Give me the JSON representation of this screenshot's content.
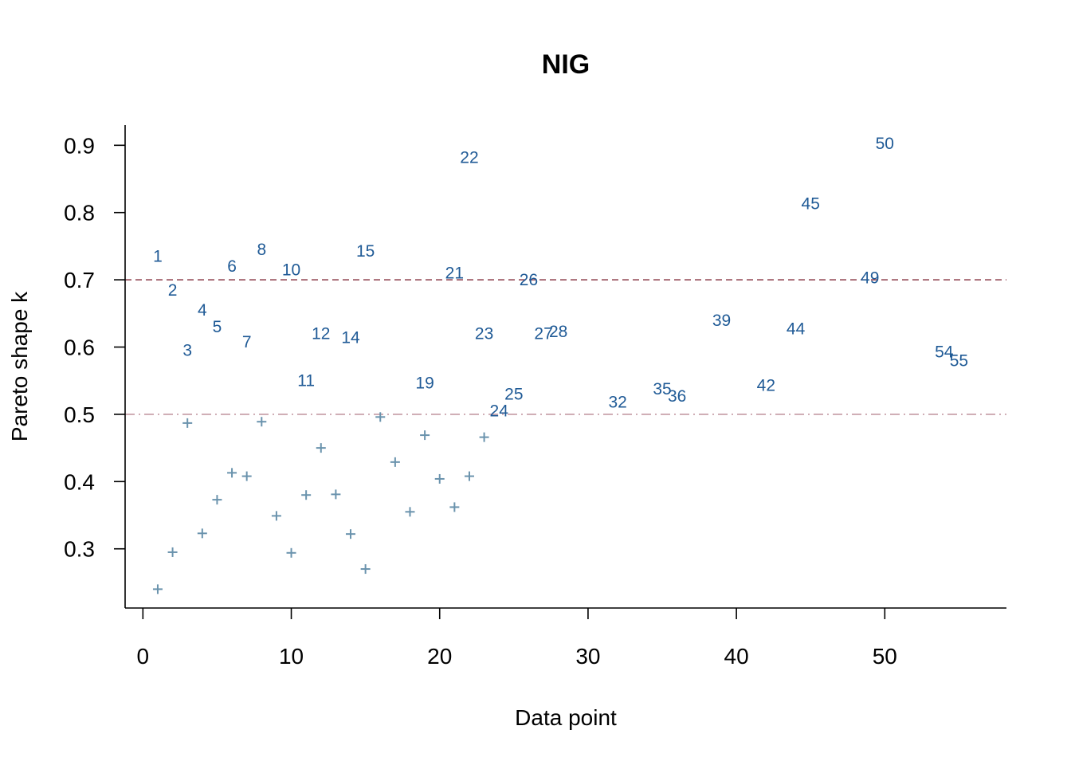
{
  "chart_data": {
    "type": "scatter",
    "title": "NIG",
    "xlabel": "Data point",
    "ylabel": "Pareto shape k",
    "xlim": [
      -1.2,
      58.2
    ],
    "ylim": [
      0.212,
      0.93
    ],
    "x_ticks": [
      0,
      10,
      20,
      30,
      40,
      50
    ],
    "y_ticks": [
      0.3,
      0.4,
      0.5,
      0.6,
      0.7,
      0.8,
      0.9
    ],
    "reference_lines": [
      {
        "y": 0.7,
        "style": "dashed",
        "color": "#8b3a48"
      },
      {
        "y": 0.5,
        "style": "dashdot",
        "color": "#c49aa4"
      }
    ],
    "colors": {
      "label": "#1f5a96",
      "cross": "#6a93ad",
      "axis": "#000000"
    },
    "labeled_points": [
      {
        "x": 1,
        "k": 0.735,
        "label": "1"
      },
      {
        "x": 2,
        "k": 0.685,
        "label": "2"
      },
      {
        "x": 3,
        "k": 0.595,
        "label": "3"
      },
      {
        "x": 4,
        "k": 0.655,
        "label": "4"
      },
      {
        "x": 5,
        "k": 0.63,
        "label": "5"
      },
      {
        "x": 6,
        "k": 0.72,
        "label": "6"
      },
      {
        "x": 7,
        "k": 0.608,
        "label": "7"
      },
      {
        "x": 8,
        "k": 0.745,
        "label": "8"
      },
      {
        "x": 10,
        "k": 0.715,
        "label": "10"
      },
      {
        "x": 11,
        "k": 0.55,
        "label": "11"
      },
      {
        "x": 12,
        "k": 0.62,
        "label": "12"
      },
      {
        "x": 14,
        "k": 0.614,
        "label": "14"
      },
      {
        "x": 15,
        "k": 0.743,
        "label": "15"
      },
      {
        "x": 19,
        "k": 0.547,
        "label": "19"
      },
      {
        "x": 21,
        "k": 0.71,
        "label": "21"
      },
      {
        "x": 22,
        "k": 0.882,
        "label": "22"
      },
      {
        "x": 23,
        "k": 0.62,
        "label": "23"
      },
      {
        "x": 24,
        "k": 0.505,
        "label": "24"
      },
      {
        "x": 25,
        "k": 0.53,
        "label": "25"
      },
      {
        "x": 26,
        "k": 0.7,
        "label": "26"
      },
      {
        "x": 27,
        "k": 0.62,
        "label": "27"
      },
      {
        "x": 28,
        "k": 0.623,
        "label": "28"
      },
      {
        "x": 32,
        "k": 0.518,
        "label": "32"
      },
      {
        "x": 35,
        "k": 0.538,
        "label": "35"
      },
      {
        "x": 36,
        "k": 0.527,
        "label": "36"
      },
      {
        "x": 39,
        "k": 0.64,
        "label": "39"
      },
      {
        "x": 42,
        "k": 0.543,
        "label": "42"
      },
      {
        "x": 44,
        "k": 0.627,
        "label": "44"
      },
      {
        "x": 45,
        "k": 0.813,
        "label": "45"
      },
      {
        "x": 49,
        "k": 0.703,
        "label": "49"
      },
      {
        "x": 50,
        "k": 0.903,
        "label": "50"
      },
      {
        "x": 54,
        "k": 0.593,
        "label": "54"
      },
      {
        "x": 55,
        "k": 0.58,
        "label": "55"
      }
    ],
    "cross_points": [
      {
        "x": 1,
        "k": 0.24
      },
      {
        "x": 2,
        "k": 0.295
      },
      {
        "x": 3,
        "k": 0.487
      },
      {
        "x": 4,
        "k": 0.323
      },
      {
        "x": 5,
        "k": 0.373
      },
      {
        "x": 6,
        "k": 0.413
      },
      {
        "x": 7,
        "k": 0.408
      },
      {
        "x": 8,
        "k": 0.489
      },
      {
        "x": 9,
        "k": 0.349
      },
      {
        "x": 10,
        "k": 0.294
      },
      {
        "x": 11,
        "k": 0.38
      },
      {
        "x": 12,
        "k": 0.45
      },
      {
        "x": 13,
        "k": 0.381
      },
      {
        "x": 14,
        "k": 0.322
      },
      {
        "x": 15,
        "k": 0.27
      },
      {
        "x": 16,
        "k": 0.496
      },
      {
        "x": 17,
        "k": 0.429
      },
      {
        "x": 18,
        "k": 0.355
      },
      {
        "x": 19,
        "k": 0.469
      },
      {
        "x": 20,
        "k": 0.404
      },
      {
        "x": 21,
        "k": 0.362
      },
      {
        "x": 22,
        "k": 0.408
      },
      {
        "x": 23,
        "k": 0.466
      }
    ]
  }
}
